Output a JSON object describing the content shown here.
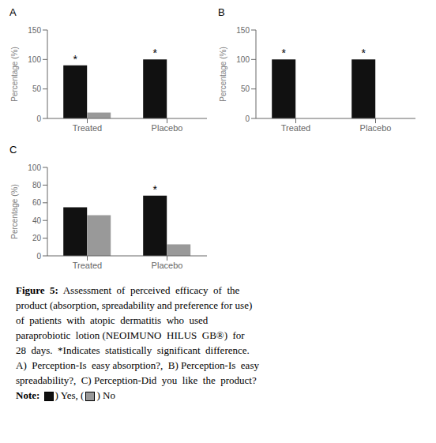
{
  "chart_data": [
    {
      "type": "bar",
      "title": "A",
      "ylabel": "Percentage (%)",
      "categories": [
        "Treated",
        "Placebo"
      ],
      "series": [
        {
          "name": "Yes",
          "color": "#111111",
          "values": [
            90,
            100
          ]
        },
        {
          "name": "No",
          "color": "#999999",
          "values": [
            10,
            0
          ]
        }
      ],
      "ylim": [
        0,
        150
      ],
      "yticks": [
        0,
        50,
        100,
        150
      ],
      "grid": false,
      "annotations": [
        {
          "x": "Treated",
          "series": "Yes",
          "text": "*"
        },
        {
          "x": "Placebo",
          "series": "Yes",
          "text": "*"
        }
      ]
    },
    {
      "type": "bar",
      "title": "B",
      "ylabel": "Percentage (%)",
      "categories": [
        "Treated",
        "Placebo"
      ],
      "series": [
        {
          "name": "Yes",
          "color": "#111111",
          "values": [
            100,
            100
          ]
        },
        {
          "name": "No",
          "color": "#999999",
          "values": [
            0,
            0
          ]
        }
      ],
      "ylim": [
        0,
        150
      ],
      "yticks": [
        0,
        50,
        100,
        150
      ],
      "grid": false,
      "annotations": [
        {
          "x": "Treated",
          "series": "Yes",
          "text": "*"
        },
        {
          "x": "Placebo",
          "series": "Yes",
          "text": "*"
        }
      ]
    },
    {
      "type": "bar",
      "title": "C",
      "ylabel": "Percentage (%)",
      "categories": [
        "Treated",
        "Placebo"
      ],
      "series": [
        {
          "name": "Yes",
          "color": "#111111",
          "values": [
            55,
            68
          ]
        },
        {
          "name": "No",
          "color": "#999999",
          "values": [
            46,
            13
          ]
        }
      ],
      "ylim": [
        0,
        100
      ],
      "yticks": [
        0,
        20,
        40,
        60,
        80,
        100
      ],
      "grid": false,
      "annotations": [
        {
          "x": "Placebo",
          "series": "Yes",
          "text": "*"
        }
      ]
    }
  ],
  "annotations": [
    [
      "Figure  5:",
      "  Assessment  of  perceived  efficacy  of  the"
    ],
    [
      "product (absorption, spreadability and preference for use)"
    ],
    [
      "of  patients  with  atopic  dermatitis  who  used"
    ],
    [
      "paraprobiotic  lotion (NEOIMUNO  HILUS  GB®)  for"
    ],
    [
      "28  days.  *Indicates  statistically  significant  difference."
    ],
    [
      "A)  Perception-Is  easy absorption?,  B) Perception-Is  easy"
    ],
    [
      "spreadability?,  C) Perception-Did  you  like  the  product?"
    ],
    [
      "Note:",
      ") Yes, (",
      ") No"
    ]
  ]
}
